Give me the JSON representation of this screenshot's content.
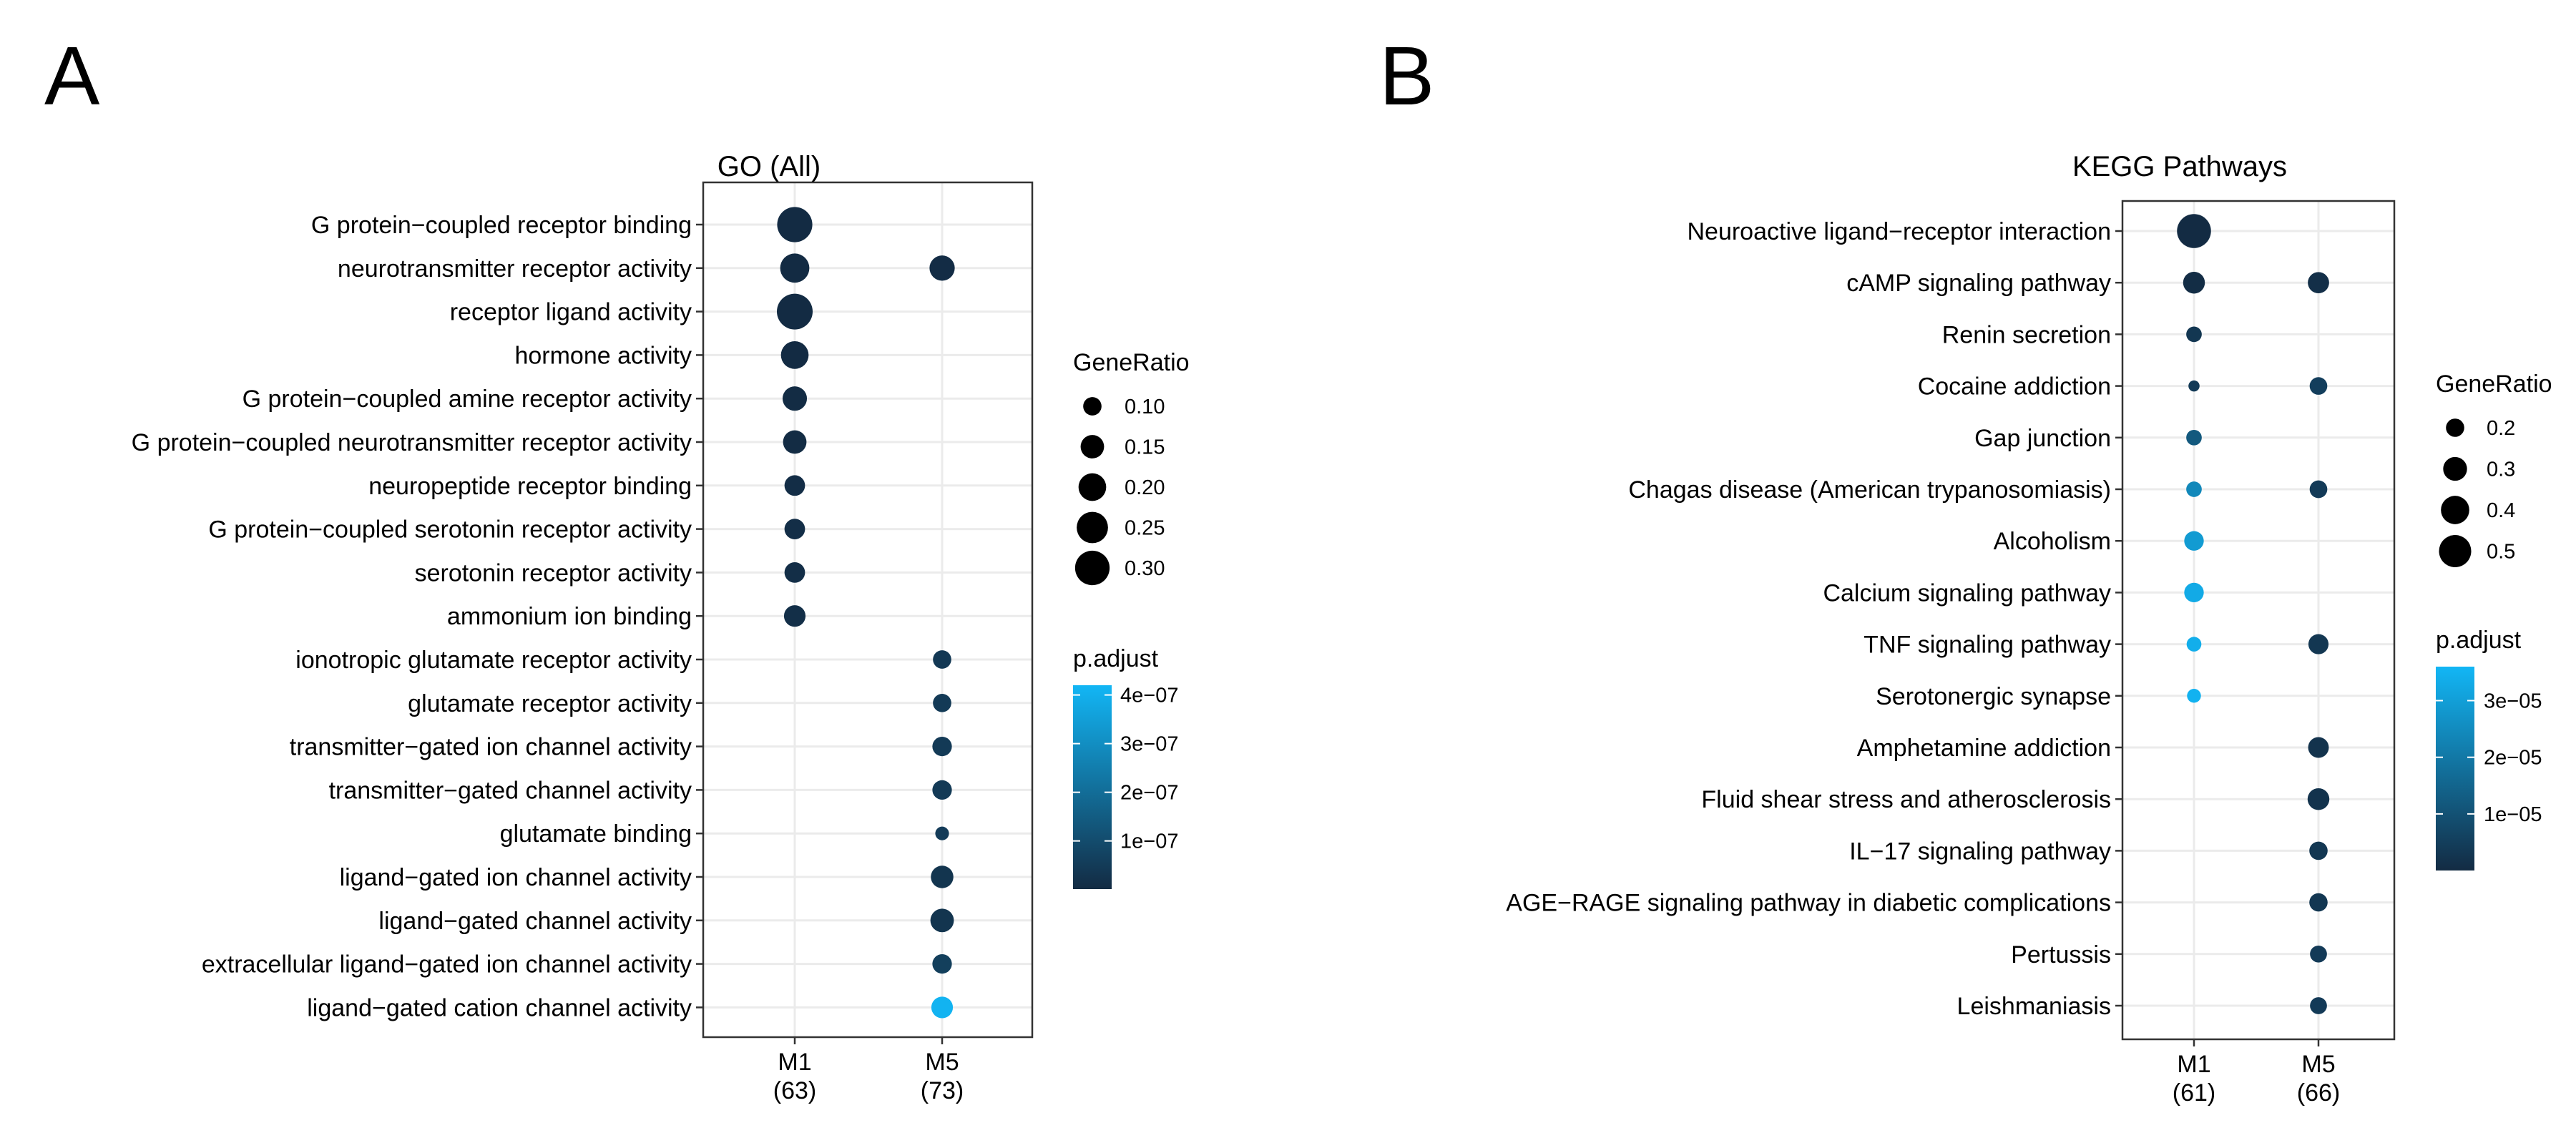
{
  "panel_labels": {
    "a": "A",
    "b": "B"
  },
  "colors": {
    "p_low": "#132b43",
    "p_high": "#12b6f5",
    "background": "#ffffff",
    "grid": "#ebebeb",
    "frame": "#333333"
  },
  "chart_data": [
    {
      "type": "scatter",
      "title": "GO (All)",
      "xlabel": "",
      "ylabel": "",
      "x_categories": [
        {
          "name": "M1",
          "count": "(63)"
        },
        {
          "name": "M5",
          "count": "(73)"
        }
      ],
      "y_categories": [
        "G protein−coupled receptor binding",
        "neurotransmitter receptor activity",
        "receptor ligand activity",
        "hormone activity",
        "G protein−coupled amine receptor activity",
        "G protein−coupled neurotransmitter receptor activity",
        "neuropeptide receptor binding",
        "G protein−coupled serotonin receptor activity",
        "serotonin receptor activity",
        "ammonium ion binding",
        "ionotropic glutamate receptor activity",
        "glutamate receptor activity",
        "transmitter−gated ion channel activity",
        "transmitter−gated channel activity",
        "glutamate binding",
        "ligand−gated ion channel activity",
        "ligand−gated channel activity",
        "extracellular ligand−gated ion channel activity",
        "ligand−gated cation channel activity"
      ],
      "points": [
        {
          "x": "M1",
          "y": 0,
          "gene_ratio": 0.31,
          "p_adjust": 1e-09
        },
        {
          "x": "M1",
          "y": 1,
          "gene_ratio": 0.22,
          "p_adjust": 2e-09
        },
        {
          "x": "M5",
          "y": 1,
          "gene_ratio": 0.17,
          "p_adjust": 5e-09
        },
        {
          "x": "M1",
          "y": 2,
          "gene_ratio": 0.32,
          "p_adjust": 1e-09
        },
        {
          "x": "M1",
          "y": 3,
          "gene_ratio": 0.2,
          "p_adjust": 2e-09
        },
        {
          "x": "M1",
          "y": 4,
          "gene_ratio": 0.16,
          "p_adjust": 3e-09
        },
        {
          "x": "M1",
          "y": 5,
          "gene_ratio": 0.15,
          "p_adjust": 4e-09
        },
        {
          "x": "M1",
          "y": 6,
          "gene_ratio": 0.12,
          "p_adjust": 8e-09
        },
        {
          "x": "M1",
          "y": 7,
          "gene_ratio": 0.12,
          "p_adjust": 1e-08
        },
        {
          "x": "M1",
          "y": 8,
          "gene_ratio": 0.12,
          "p_adjust": 1e-08
        },
        {
          "x": "M1",
          "y": 9,
          "gene_ratio": 0.13,
          "p_adjust": 1.2e-08
        },
        {
          "x": "M5",
          "y": 10,
          "gene_ratio": 0.1,
          "p_adjust": 4e-08
        },
        {
          "x": "M5",
          "y": 11,
          "gene_ratio": 0.1,
          "p_adjust": 4.5e-08
        },
        {
          "x": "M5",
          "y": 12,
          "gene_ratio": 0.11,
          "p_adjust": 4.5e-08
        },
        {
          "x": "M5",
          "y": 13,
          "gene_ratio": 0.11,
          "p_adjust": 4.5e-08
        },
        {
          "x": "M5",
          "y": 14,
          "gene_ratio": 0.065,
          "p_adjust": 5e-08
        },
        {
          "x": "M5",
          "y": 15,
          "gene_ratio": 0.14,
          "p_adjust": 3e-08
        },
        {
          "x": "M5",
          "y": 16,
          "gene_ratio": 0.15,
          "p_adjust": 3e-08
        },
        {
          "x": "M5",
          "y": 17,
          "gene_ratio": 0.11,
          "p_adjust": 6e-08
        },
        {
          "x": "M5",
          "y": 18,
          "gene_ratio": 0.13,
          "p_adjust": 4.1e-07
        }
      ],
      "size_legend": {
        "title": "GeneRatio",
        "values": [
          0.1,
          0.15,
          0.2,
          0.25,
          0.3
        ],
        "labels": [
          "0.10",
          "0.15",
          "0.20",
          "0.25",
          "0.30"
        ],
        "domain": [
          0.06,
          0.32
        ]
      },
      "color_legend": {
        "title": "p.adjust",
        "domain": [
          1e-09,
          4.2e-07
        ],
        "breaks": [
          1e-07,
          2e-07,
          3e-07,
          4e-07
        ],
        "labels": [
          "1e−07",
          "2e−07",
          "3e−07",
          "4e−07"
        ]
      },
      "grid": true,
      "legend_position": "right"
    },
    {
      "type": "scatter",
      "title": "KEGG Pathways",
      "xlabel": "",
      "ylabel": "",
      "x_categories": [
        {
          "name": "M1",
          "count": "(61)"
        },
        {
          "name": "M5",
          "count": "(66)"
        }
      ],
      "y_categories": [
        "Neuroactive ligand−receptor interaction",
        "cAMP signaling pathway",
        "Renin secretion",
        "Cocaine addiction",
        "Gap junction",
        "Chagas disease (American trypanosomiasis)",
        "Alcoholism",
        "Calcium signaling pathway",
        "TNF signaling pathway",
        "Serotonergic synapse",
        "Amphetamine addiction",
        "Fluid shear stress and atherosclerosis",
        "IL−17 signaling pathway",
        "AGE−RAGE signaling pathway in diabetic complications",
        "Pertussis",
        "Leishmaniasis"
      ],
      "points": [
        {
          "x": "M1",
          "y": 0,
          "gene_ratio": 0.55,
          "p_adjust": 1e-08
        },
        {
          "x": "M1",
          "y": 1,
          "gene_ratio": 0.26,
          "p_adjust": 5e-07
        },
        {
          "x": "M5",
          "y": 1,
          "gene_ratio": 0.25,
          "p_adjust": 1e-06
        },
        {
          "x": "M1",
          "y": 2,
          "gene_ratio": 0.16,
          "p_adjust": 3e-06
        },
        {
          "x": "M1",
          "y": 3,
          "gene_ratio": 0.11,
          "p_adjust": 4e-06
        },
        {
          "x": "M5",
          "y": 3,
          "gene_ratio": 0.19,
          "p_adjust": 5e-06
        },
        {
          "x": "M1",
          "y": 4,
          "gene_ratio": 0.16,
          "p_adjust": 1.2e-05
        },
        {
          "x": "M1",
          "y": 5,
          "gene_ratio": 0.16,
          "p_adjust": 2.4e-05
        },
        {
          "x": "M5",
          "y": 5,
          "gene_ratio": 0.19,
          "p_adjust": 4e-06
        },
        {
          "x": "M1",
          "y": 6,
          "gene_ratio": 0.22,
          "p_adjust": 2.9e-05
        },
        {
          "x": "M1",
          "y": 7,
          "gene_ratio": 0.22,
          "p_adjust": 3.3e-05
        },
        {
          "x": "M1",
          "y": 8,
          "gene_ratio": 0.15,
          "p_adjust": 3.4e-05
        },
        {
          "x": "M5",
          "y": 8,
          "gene_ratio": 0.23,
          "p_adjust": 3e-06
        },
        {
          "x": "M1",
          "y": 9,
          "gene_ratio": 0.14,
          "p_adjust": 3.5e-05
        },
        {
          "x": "M5",
          "y": 10,
          "gene_ratio": 0.24,
          "p_adjust": 2e-06
        },
        {
          "x": "M5",
          "y": 11,
          "gene_ratio": 0.26,
          "p_adjust": 2e-06
        },
        {
          "x": "M5",
          "y": 12,
          "gene_ratio": 0.2,
          "p_adjust": 3e-06
        },
        {
          "x": "M5",
          "y": 13,
          "gene_ratio": 0.2,
          "p_adjust": 3e-06
        },
        {
          "x": "M5",
          "y": 14,
          "gene_ratio": 0.18,
          "p_adjust": 4e-06
        },
        {
          "x": "M5",
          "y": 15,
          "gene_ratio": 0.18,
          "p_adjust": 4e-06
        }
      ],
      "size_legend": {
        "title": "GeneRatio",
        "values": [
          0.2,
          0.3,
          0.4,
          0.5
        ],
        "labels": [
          "0.2",
          "0.3",
          "0.4",
          "0.5"
        ],
        "domain": [
          0.1,
          0.56
        ]
      },
      "color_legend": {
        "title": "p.adjust",
        "domain": [
          1e-08,
          3.6e-05
        ],
        "breaks": [
          1e-05,
          2e-05,
          3e-05
        ],
        "labels": [
          "1e−05",
          "2e−05",
          "3e−05"
        ]
      },
      "grid": true,
      "legend_position": "right"
    }
  ]
}
